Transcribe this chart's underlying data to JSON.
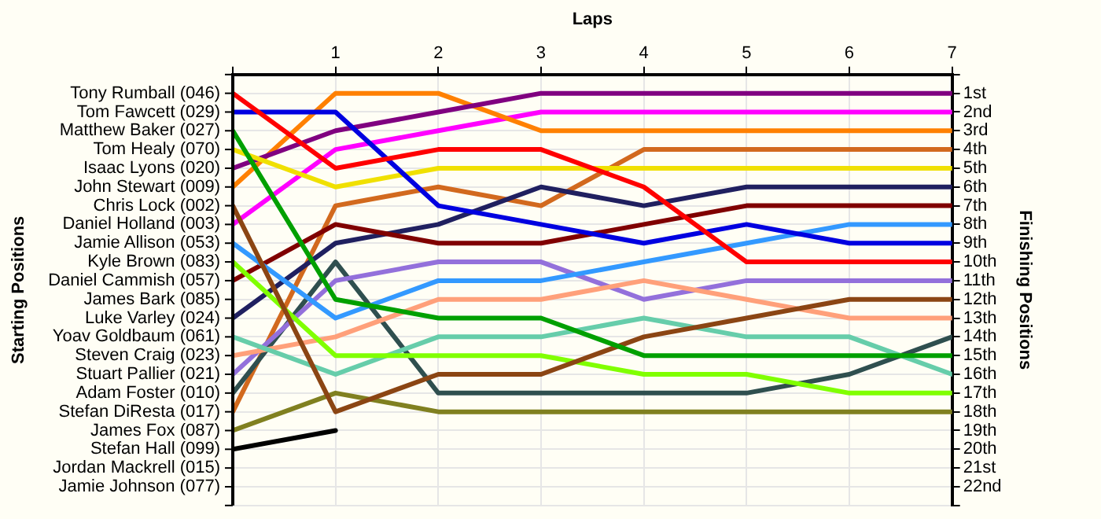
{
  "chart_data": {
    "type": "line",
    "xlabel": "Laps",
    "ylabel": "Finishing Positions",
    "x": [
      0,
      1,
      2,
      3,
      4,
      5,
      6,
      7
    ],
    "xlim": [
      0,
      7
    ],
    "xticks": [
      {
        "value": 0,
        "label": null
      },
      1,
      2,
      3,
      4,
      5,
      6,
      7
    ],
    "ylim": [
      23,
      0
    ],
    "yticks": [
      {
        "value": 0,
        "label": null
      },
      {
        "value": 1,
        "label": "1st"
      },
      {
        "value": 2,
        "label": "2nd"
      },
      {
        "value": 3,
        "label": "3rd"
      },
      {
        "value": 4,
        "label": "4th"
      },
      {
        "value": 5,
        "label": "5th"
      },
      {
        "value": 6,
        "label": "6th"
      },
      {
        "value": 7,
        "label": "7th"
      },
      {
        "value": 8,
        "label": "8th"
      },
      {
        "value": 9,
        "label": "9th"
      },
      {
        "value": 10,
        "label": "10th"
      },
      {
        "value": 11,
        "label": "11th"
      },
      {
        "value": 12,
        "label": "12th"
      },
      {
        "value": 13,
        "label": "13th"
      },
      {
        "value": 14,
        "label": "14th"
      },
      {
        "value": 15,
        "label": "15th"
      },
      {
        "value": 16,
        "label": "16th"
      },
      {
        "value": 17,
        "label": "17th"
      },
      {
        "value": 18,
        "label": "18th"
      },
      {
        "value": 19,
        "label": "19th"
      },
      {
        "value": 20,
        "label": "20th"
      },
      {
        "value": 21,
        "label": "21st"
      },
      {
        "value": 22,
        "label": "22nd"
      },
      {
        "value": 23,
        "label": null
      }
    ],
    "annotations": [
      "Starting Positions",
      "Tony Rumball (046)",
      "Tom Fawcett (029)",
      "Matthew Baker (027)",
      "Tom Healy (070)",
      "Isaac Lyons (020)",
      "John Stewart (009)",
      "Chris Lock (002)",
      "Daniel Holland (003)",
      "Jamie Allison (053)",
      "Kyle Brown (083)",
      "Daniel Cammish (057)",
      "James Bark (085)",
      "Luke Varley (024)",
      "Yoav Goldbaum (061)",
      "Steven Craig (023)",
      "Stuart Pallier (021)",
      "Adam Foster (010)",
      "Stefan DiResta (017)",
      "James Fox (087)",
      "Stefan Hall (099)",
      "Jordan Mackrell (015)",
      "Jamie Johnson (077)"
    ],
    "grid": true,
    "legend": false,
    "marker": "none",
    "line_style": "solid",
    "series": [
      {
        "color": "#ff0000",
        "values": [
          1,
          5,
          4,
          4,
          6,
          10,
          10,
          10
        ]
      },
      {
        "color": "#0000e0",
        "values": [
          2,
          2,
          7,
          8,
          9,
          8,
          9,
          9
        ]
      },
      {
        "color": "#00a000",
        "values": [
          3,
          12,
          13,
          13,
          15,
          15,
          15,
          15
        ]
      },
      {
        "color": "#f0e000",
        "values": [
          4,
          6,
          5,
          5,
          5,
          5,
          5,
          5
        ]
      },
      {
        "color": "#800080",
        "values": [
          5,
          3,
          2,
          1,
          1,
          1,
          1,
          1
        ]
      },
      {
        "color": "#ff8000",
        "values": [
          6,
          1,
          1,
          3,
          3,
          3,
          3,
          3
        ]
      },
      {
        "color": "#8b4513",
        "values": [
          7,
          18,
          16,
          16,
          14,
          13,
          12,
          12
        ]
      },
      {
        "color": "#ff00ff",
        "values": [
          8,
          4,
          3,
          2,
          2,
          2,
          2,
          2
        ]
      },
      {
        "color": "#3399ff",
        "values": [
          9,
          13,
          11,
          11,
          10,
          9,
          8,
          8
        ]
      },
      {
        "color": "#80ff00",
        "values": [
          10,
          15,
          15,
          15,
          16,
          16,
          17,
          17
        ]
      },
      {
        "color": "#800000",
        "values": [
          11,
          8,
          9,
          9,
          8,
          7,
          7,
          7
        ]
      },
      {
        "color": "#202060",
        "values": [
          13,
          9,
          8,
          6,
          7,
          6,
          6,
          6
        ]
      },
      {
        "color": "#66cdaa",
        "values": [
          14,
          16,
          14,
          14,
          13,
          14,
          14,
          16
        ]
      },
      {
        "color": "#ffa07a",
        "values": [
          15,
          14,
          12,
          12,
          11,
          12,
          13,
          13
        ]
      },
      {
        "color": "#9370db",
        "values": [
          16,
          11,
          10,
          10,
          12,
          11,
          11,
          11
        ]
      },
      {
        "color": "#2f4f4f",
        "values": [
          17,
          10,
          17,
          17,
          17,
          17,
          16,
          14
        ]
      },
      {
        "color": "#d2691e",
        "values": [
          18,
          7,
          6,
          7,
          4,
          4,
          4,
          4
        ]
      },
      {
        "color": "#808020",
        "values": [
          19,
          17,
          18,
          18,
          18,
          18,
          18,
          18
        ]
      },
      {
        "color": "#000000",
        "values": [
          20,
          19,
          null,
          null,
          null,
          null,
          null,
          null
        ]
      }
    ]
  }
}
